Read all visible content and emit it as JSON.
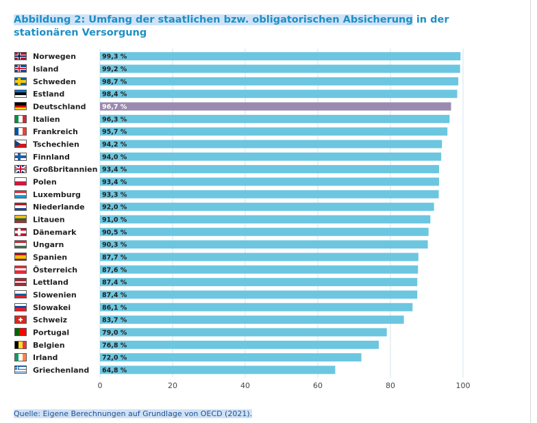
{
  "title": {
    "part1": "Abbildung 2: Umfang der staatlichen bzw. obligatorischen Absicherung",
    "part2": " in der stationären Versorgung"
  },
  "source": "Quelle: Eigene Berechnungen auf Grundlage von OECD (2021).",
  "colors": {
    "bar": "#6cc6e0",
    "highlight_bar": "#9b8ab0",
    "title": "#1f8fc4",
    "grid": "#cfe4ee"
  },
  "chart_data": {
    "type": "bar",
    "orientation": "horizontal",
    "xlim": [
      0,
      100
    ],
    "xticks": [
      "0",
      "20",
      "40",
      "60",
      "80",
      "100"
    ],
    "grid": true,
    "highlight": "Deutschland",
    "categories": [
      "Norwegen",
      "Island",
      "Schweden",
      "Estland",
      "Deutschland",
      "Italien",
      "Frankreich",
      "Tschechien",
      "Finnland",
      "Großbritannien",
      "Polen",
      "Luxemburg",
      "Niederlande",
      "Litauen",
      "Dänemark",
      "Ungarn",
      "Spanien",
      "Österreich",
      "Lettland",
      "Slowenien",
      "Slowakei",
      "Schweiz",
      "Portugal",
      "Belgien",
      "Irland",
      "Griechenland"
    ],
    "values": [
      99.3,
      99.2,
      98.7,
      98.4,
      96.7,
      96.3,
      95.7,
      94.2,
      94.0,
      93.4,
      93.4,
      93.3,
      92.0,
      91.0,
      90.5,
      90.3,
      87.7,
      87.6,
      87.4,
      87.4,
      86.1,
      83.7,
      79.0,
      76.8,
      72.0,
      64.8
    ],
    "value_labels": [
      "99,3 %",
      "99,2 %",
      "98,7 %",
      "98,4 %",
      "96,7 %",
      "96,3 %",
      "95,7 %",
      "94,2 %",
      "94,0 %",
      "93,4 %",
      "93,4 %",
      "93,3 %",
      "92,0 %",
      "91,0 %",
      "90,5 %",
      "90,3 %",
      "87,7 %",
      "87,6 %",
      "87,4 %",
      "87,4 %",
      "86,1 %",
      "83,7 %",
      "79,0 %",
      "76,8 %",
      "72,0 %",
      "64,8 %"
    ],
    "flag_icons": [
      "norway-flag-icon",
      "iceland-flag-icon",
      "sweden-flag-icon",
      "estonia-flag-icon",
      "germany-flag-icon",
      "italy-flag-icon",
      "france-flag-icon",
      "czechia-flag-icon",
      "finland-flag-icon",
      "uk-flag-icon",
      "poland-flag-icon",
      "luxembourg-flag-icon",
      "netherlands-flag-icon",
      "lithuania-flag-icon",
      "denmark-flag-icon",
      "hungary-flag-icon",
      "spain-flag-icon",
      "austria-flag-icon",
      "latvia-flag-icon",
      "slovenia-flag-icon",
      "slovakia-flag-icon",
      "switzerland-flag-icon",
      "portugal-flag-icon",
      "belgium-flag-icon",
      "ireland-flag-icon",
      "greece-flag-icon"
    ]
  }
}
